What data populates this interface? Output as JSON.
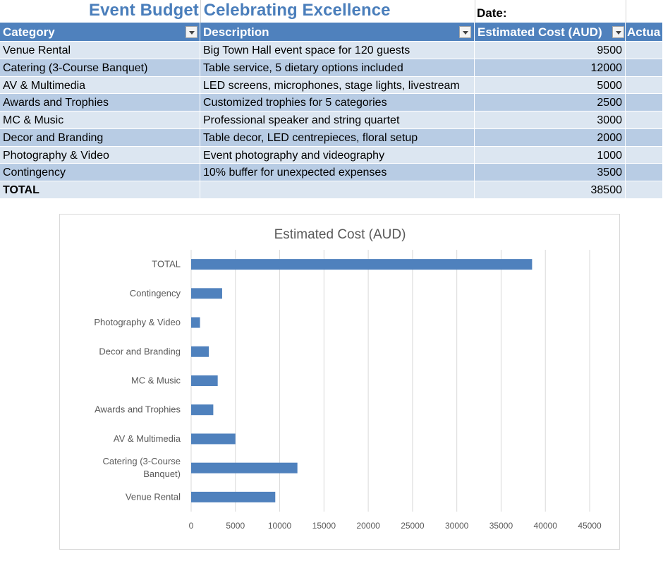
{
  "sheet": {
    "title": "Event Budget Celebrating Excellence",
    "date_label": "Date:"
  },
  "table": {
    "headers": [
      "Category",
      "Description",
      "Estimated Cost (AUD)",
      "Actua"
    ],
    "rows": [
      {
        "category": "Venue Rental",
        "description": "Big Town Hall event space for 120 guests",
        "cost": "9500"
      },
      {
        "category": "Catering (3-Course Banquet)",
        "description": "Table service, 5 dietary options included",
        "cost": "12000"
      },
      {
        "category": "AV & Multimedia",
        "description": "LED screens, microphones, stage lights, livestream",
        "cost": "5000"
      },
      {
        "category": "Awards and Trophies",
        "description": "Customized trophies for 5 categories",
        "cost": "2500"
      },
      {
        "category": "MC & Music",
        "description": "Professional speaker and string quartet",
        "cost": "3000"
      },
      {
        "category": "Decor and Branding",
        "description": "Table decor, LED centrepieces, floral setup",
        "cost": "2000"
      },
      {
        "category": "Photography & Video",
        "description": "Event photography and videography",
        "cost": "1000"
      },
      {
        "category": "Contingency",
        "description": "10% buffer for unexpected expenses",
        "cost": "3500"
      }
    ],
    "total": {
      "label": "TOTAL",
      "description": "",
      "cost": "38500"
    },
    "colors": {
      "header": "#4f81bd",
      "band_dark": "#b8cce4",
      "band_light": "#dce6f1"
    }
  },
  "chart_data": {
    "type": "bar",
    "orientation": "horizontal",
    "title": "Estimated Cost (AUD)",
    "categories": [
      "Venue Rental",
      "Catering (3-Course Banquet)",
      "AV & Multimedia",
      "Awards and Trophies",
      "MC & Music",
      "Decor and Branding",
      "Photography & Video",
      "Contingency",
      "TOTAL"
    ],
    "values": [
      9500,
      12000,
      5000,
      2500,
      3000,
      2000,
      1000,
      3500,
      38500
    ],
    "xlim": [
      0,
      45000
    ],
    "xticks": [
      "0",
      "5000",
      "10000",
      "15000",
      "20000",
      "25000",
      "30000",
      "35000",
      "40000",
      "45000"
    ],
    "grid": true,
    "bar_color": "#4f81bd"
  }
}
